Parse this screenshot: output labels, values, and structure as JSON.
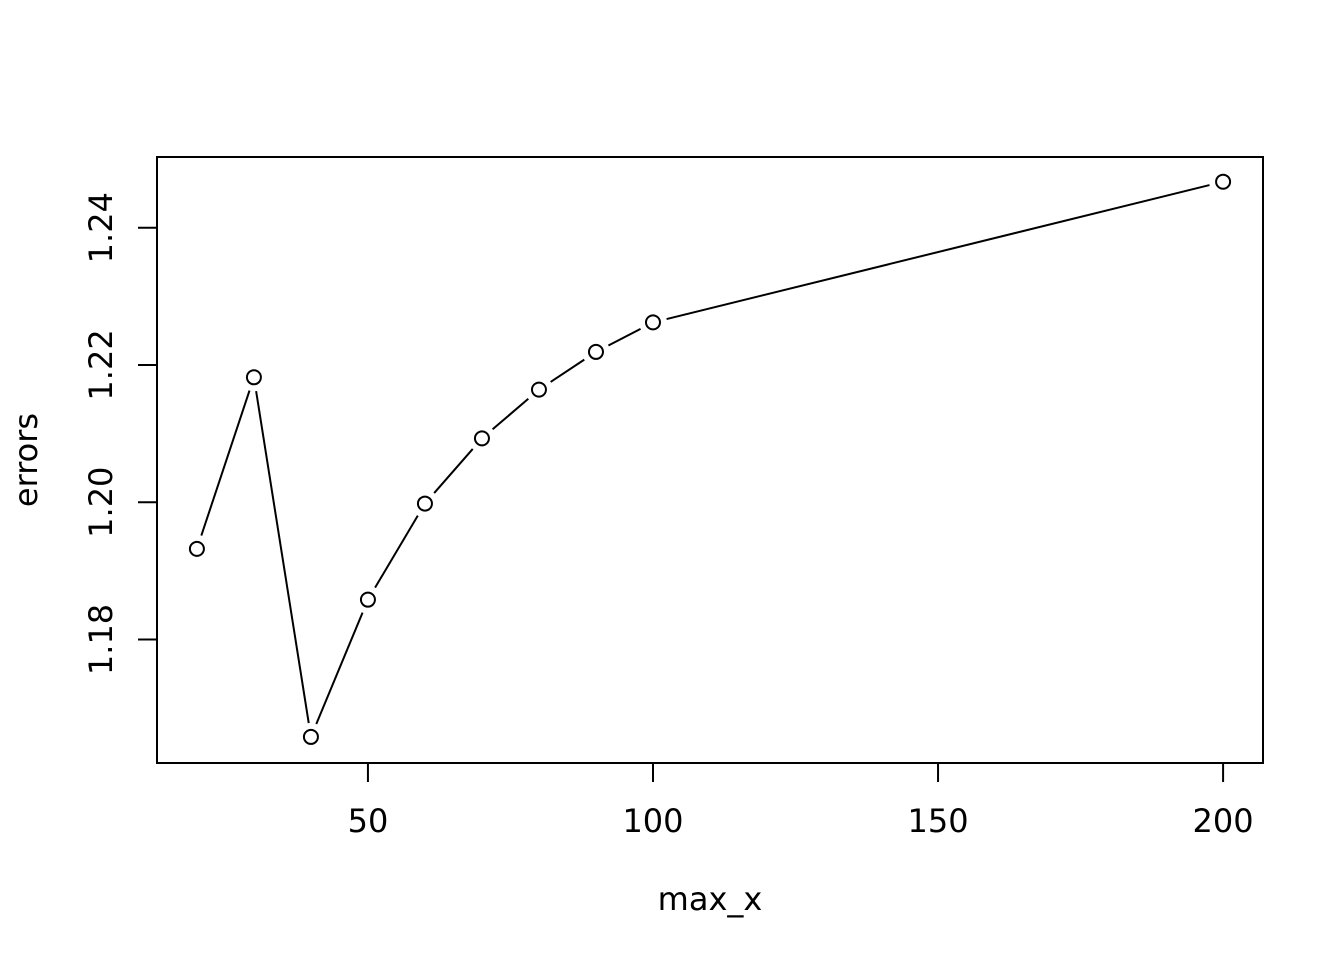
{
  "chart_data": {
    "type": "line",
    "markers": "open-circle",
    "line_style": "solid line with gaps at markers",
    "xlabel": "max_x",
    "ylabel": "errors",
    "xlim": [
      13,
      207
    ],
    "ylim": [
      1.162,
      1.2503
    ],
    "xticks": [
      50,
      100,
      150,
      200
    ],
    "yticks": [
      1.18,
      1.2,
      1.22,
      1.24
    ],
    "xtick_labels": [
      "50",
      "100",
      "150",
      "200"
    ],
    "ytick_labels": [
      "1.18",
      "1.20",
      "1.22",
      "1.24"
    ],
    "grid": false,
    "series": [
      {
        "x": [
          20,
          30,
          40,
          50,
          60,
          70,
          80,
          90,
          100,
          200
        ],
        "y": [
          1.1932,
          1.2182,
          1.1658,
          1.1858,
          1.1998,
          1.2093,
          1.2164,
          1.2219,
          1.2262,
          1.2467
        ]
      }
    ]
  }
}
